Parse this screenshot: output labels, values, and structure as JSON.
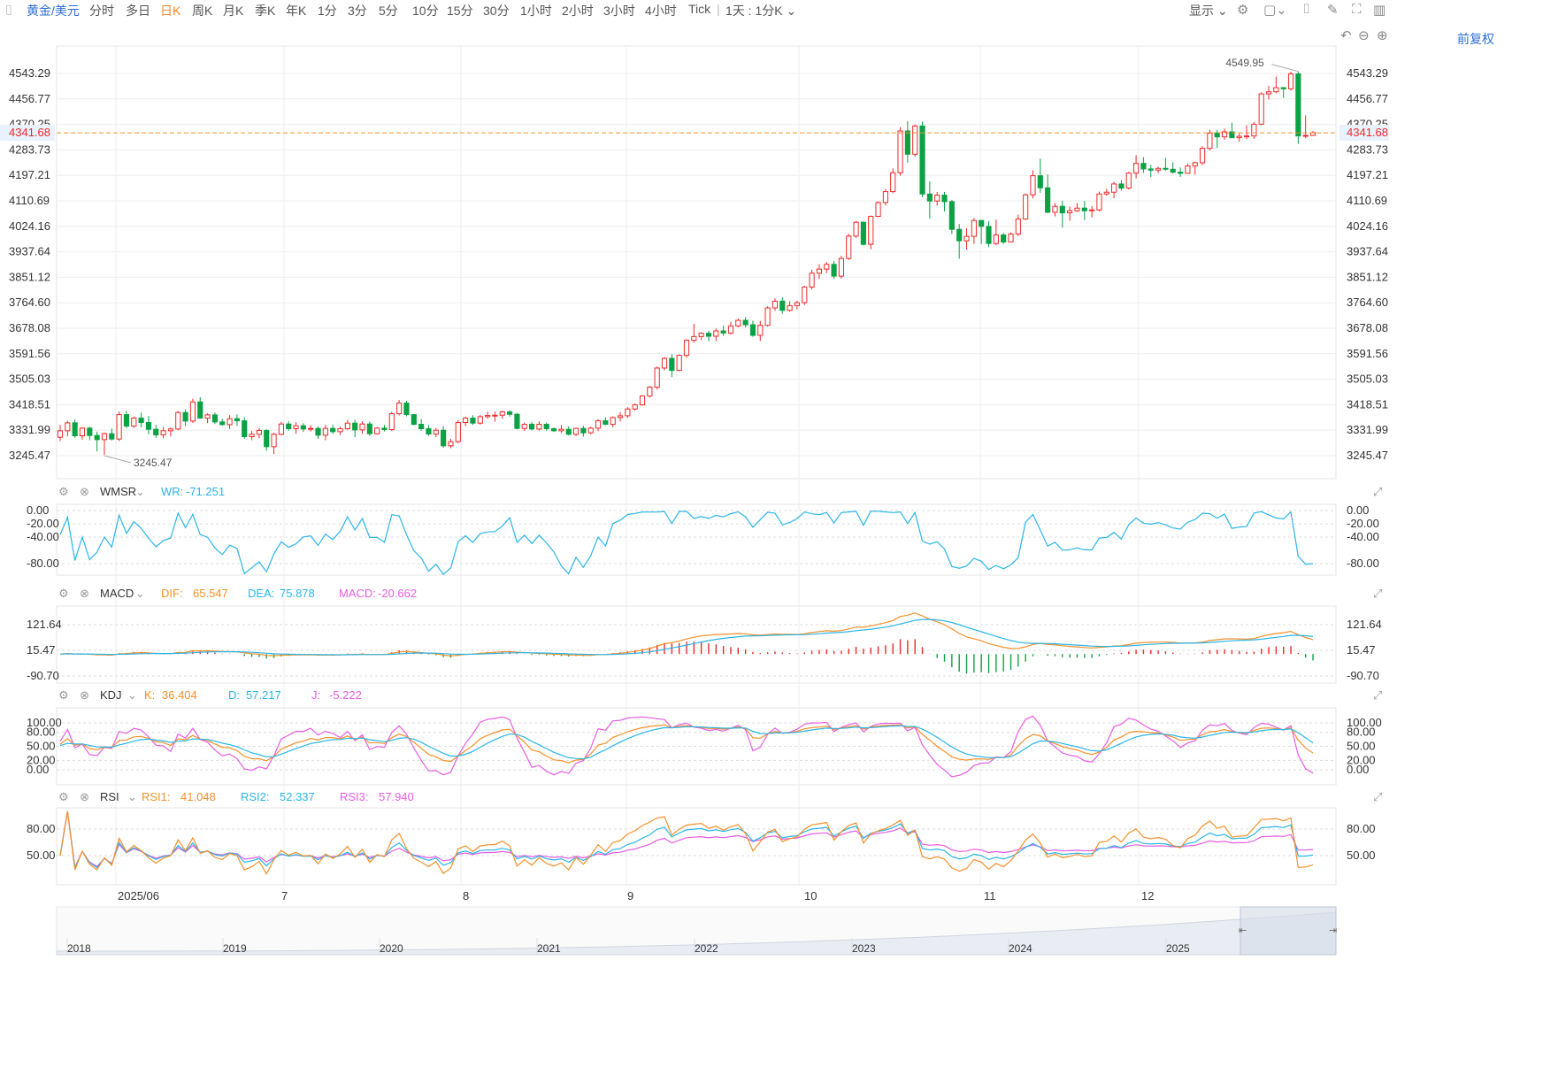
{
  "toolbar": {
    "symbol": "黄金/美元",
    "periods": [
      "分时",
      "多日",
      "日K",
      "周K",
      "月K",
      "季K",
      "年K",
      "1分",
      "3分",
      "5分",
      "10分",
      "15分",
      "30分",
      "1小时",
      "2小时",
      "3小时",
      "4小时",
      "Tick"
    ],
    "active_period": "日K",
    "interval_select": "1天 : 1分K",
    "display_label": "显示",
    "icons": [
      "settings-icon",
      "square-icon",
      "camera-icon",
      "pen-icon",
      "fullscreen-icon",
      "layout-icon"
    ],
    "adjust_label": "前复权",
    "adjust_icons": [
      "undo-icon",
      "zoom-out-icon",
      "zoom-in-icon"
    ]
  },
  "chart_data": {
    "type": "candlestick",
    "main": {
      "y_ticks": [
        4543.29,
        4456.77,
        4370.25,
        4283.73,
        4197.21,
        4110.69,
        4024.16,
        3937.64,
        3851.12,
        3764.6,
        3678.08,
        3591.56,
        3505.03,
        3418.51,
        3331.99,
        3245.47
      ],
      "last_price": "4341.68",
      "high_marker": "4549.95",
      "low_marker": "3245.47",
      "ohlc": [
        [
          3308,
          3350,
          3295,
          3330
        ],
        [
          3330,
          3364,
          3311,
          3357
        ],
        [
          3357,
          3368,
          3306,
          3313
        ],
        [
          3313,
          3342,
          3300,
          3339
        ],
        [
          3339,
          3344,
          3298,
          3314
        ],
        [
          3314,
          3327,
          3260,
          3300
        ],
        [
          3300,
          3324,
          3248,
          3320
        ],
        [
          3320,
          3338,
          3297,
          3302
        ],
        [
          3302,
          3395,
          3295,
          3385
        ],
        [
          3385,
          3398,
          3339,
          3346
        ],
        [
          3346,
          3378,
          3339,
          3373
        ],
        [
          3373,
          3392,
          3341,
          3358
        ],
        [
          3358,
          3380,
          3318,
          3335
        ],
        [
          3335,
          3350,
          3306,
          3316
        ],
        [
          3316,
          3343,
          3304,
          3330
        ],
        [
          3330,
          3342,
          3311,
          3336
        ],
        [
          3336,
          3397,
          3332,
          3392
        ],
        [
          3392,
          3403,
          3346,
          3363
        ],
        [
          3363,
          3439,
          3357,
          3428
        ],
        [
          3428,
          3444,
          3371,
          3373
        ],
        [
          3373,
          3389,
          3356,
          3384
        ],
        [
          3384,
          3392,
          3353,
          3360
        ],
        [
          3360,
          3371,
          3347,
          3351
        ],
        [
          3351,
          3383,
          3336,
          3371
        ],
        [
          3371,
          3386,
          3347,
          3364
        ],
        [
          3364,
          3376,
          3303,
          3310
        ],
        [
          3310,
          3329,
          3298,
          3318
        ],
        [
          3318,
          3340,
          3305,
          3331
        ],
        [
          3331,
          3336,
          3262,
          3276
        ],
        [
          3276,
          3323,
          3251,
          3318
        ],
        [
          3318,
          3360,
          3315,
          3353
        ],
        [
          3353,
          3362,
          3330,
          3337
        ],
        [
          3337,
          3359,
          3320,
          3347
        ],
        [
          3347,
          3356,
          3326,
          3336
        ],
        [
          3336,
          3349,
          3328,
          3338
        ],
        [
          3338,
          3345,
          3302,
          3315
        ],
        [
          3315,
          3350,
          3298,
          3338
        ],
        [
          3338,
          3351,
          3319,
          3327
        ],
        [
          3327,
          3344,
          3316,
          3337
        ],
        [
          3337,
          3367,
          3332,
          3356
        ],
        [
          3356,
          3367,
          3308,
          3333
        ],
        [
          3333,
          3362,
          3320,
          3353
        ],
        [
          3353,
          3361,
          3312,
          3320
        ],
        [
          3320,
          3343,
          3317,
          3339
        ],
        [
          3339,
          3350,
          3328,
          3334
        ],
        [
          3334,
          3394,
          3329,
          3388
        ],
        [
          3388,
          3435,
          3382,
          3424
        ],
        [
          3424,
          3432,
          3379,
          3385
        ],
        [
          3385,
          3387,
          3348,
          3352
        ],
        [
          3352,
          3370,
          3330,
          3337
        ],
        [
          3337,
          3349,
          3313,
          3319
        ],
        [
          3319,
          3340,
          3309,
          3332
        ],
        [
          3332,
          3346,
          3273,
          3279
        ],
        [
          3279,
          3303,
          3271,
          3293
        ],
        [
          3293,
          3367,
          3288,
          3358
        ],
        [
          3358,
          3378,
          3346,
          3373
        ],
        [
          3373,
          3383,
          3350,
          3356
        ],
        [
          3356,
          3384,
          3351,
          3378
        ],
        [
          3378,
          3395,
          3371,
          3382
        ],
        [
          3382,
          3395,
          3361,
          3383
        ],
        [
          3383,
          3398,
          3371,
          3394
        ],
        [
          3394,
          3400,
          3378,
          3386
        ],
        [
          3386,
          3391,
          3335,
          3338
        ],
        [
          3338,
          3358,
          3330,
          3352
        ],
        [
          3352,
          3359,
          3331,
          3336
        ],
        [
          3336,
          3362,
          3331,
          3352
        ],
        [
          3352,
          3358,
          3330,
          3337
        ],
        [
          3337,
          3341,
          3326,
          3330
        ],
        [
          3330,
          3350,
          3322,
          3335
        ],
        [
          3335,
          3345,
          3314,
          3318
        ],
        [
          3318,
          3340,
          3312,
          3338
        ],
        [
          3338,
          3347,
          3310,
          3323
        ],
        [
          3323,
          3344,
          3318,
          3339
        ],
        [
          3339,
          3369,
          3329,
          3364
        ],
        [
          3364,
          3376,
          3349,
          3352
        ],
        [
          3352,
          3379,
          3342,
          3375
        ],
        [
          3375,
          3393,
          3362,
          3381
        ],
        [
          3381,
          3410,
          3374,
          3404
        ],
        [
          3404,
          3423,
          3398,
          3418
        ],
        [
          3418,
          3451,
          3415,
          3448
        ],
        [
          3448,
          3482,
          3443,
          3478
        ],
        [
          3478,
          3548,
          3470,
          3543
        ],
        [
          3543,
          3580,
          3535,
          3576
        ],
        [
          3576,
          3590,
          3512,
          3535
        ],
        [
          3535,
          3590,
          3532,
          3586
        ],
        [
          3586,
          3641,
          3578,
          3637
        ],
        [
          3637,
          3693,
          3629,
          3650
        ],
        [
          3650,
          3665,
          3638,
          3661
        ],
        [
          3661,
          3670,
          3634,
          3651
        ],
        [
          3651,
          3677,
          3635,
          3669
        ],
        [
          3669,
          3687,
          3652,
          3662
        ],
        [
          3662,
          3700,
          3656,
          3686
        ],
        [
          3686,
          3711,
          3681,
          3705
        ],
        [
          3705,
          3716,
          3681,
          3690
        ],
        [
          3690,
          3704,
          3649,
          3654
        ],
        [
          3654,
          3703,
          3635,
          3688
        ],
        [
          3688,
          3753,
          3684,
          3747
        ],
        [
          3747,
          3780,
          3738,
          3770
        ],
        [
          3770,
          3783,
          3727,
          3739
        ],
        [
          3739,
          3770,
          3734,
          3755
        ],
        [
          3755,
          3772,
          3742,
          3765
        ],
        [
          3765,
          3822,
          3757,
          3818
        ],
        [
          3818,
          3877,
          3810,
          3865
        ],
        [
          3865,
          3895,
          3846,
          3879
        ],
        [
          3879,
          3903,
          3865,
          3895
        ],
        [
          3895,
          3906,
          3846,
          3855
        ],
        [
          3855,
          3924,
          3846,
          3915
        ],
        [
          3915,
          3999,
          3910,
          3991
        ],
        [
          3991,
          4043,
          3985,
          4038
        ],
        [
          4038,
          4041,
          3959,
          3963
        ],
        [
          3963,
          4061,
          3946,
          4058
        ],
        [
          4058,
          4109,
          4055,
          4105
        ],
        [
          4105,
          4151,
          4095,
          4142
        ],
        [
          4142,
          4221,
          4137,
          4206
        ],
        [
          4206,
          4361,
          4196,
          4348
        ],
        [
          4348,
          4381,
          4241,
          4269
        ],
        [
          4269,
          4370,
          4261,
          4365
        ],
        [
          4365,
          4380,
          4123,
          4134
        ],
        [
          4134,
          4177,
          4050,
          4110
        ],
        [
          4110,
          4141,
          4094,
          4130
        ],
        [
          4130,
          4141,
          4075,
          4108
        ],
        [
          4108,
          4114,
          3998,
          4014
        ],
        [
          4014,
          4032,
          3914,
          3975
        ],
        [
          3975,
          4018,
          3945,
          3990
        ],
        [
          3990,
          4053,
          3965,
          4044
        ],
        [
          4044,
          4046,
          3964,
          4024
        ],
        [
          4024,
          4042,
          3954,
          3966
        ],
        [
          3966,
          4047,
          3960,
          3995
        ],
        [
          3995,
          4002,
          3964,
          3971
        ],
        [
          3971,
          4004,
          3971,
          3998
        ],
        [
          3998,
          4064,
          3991,
          4049
        ],
        [
          4049,
          4136,
          4046,
          4131
        ],
        [
          4131,
          4214,
          4119,
          4196
        ],
        [
          4196,
          4255,
          4138,
          4155
        ],
        [
          4155,
          4200,
          4069,
          4072
        ],
        [
          4072,
          4103,
          4058,
          4092
        ],
        [
          4092,
          4111,
          4020,
          4070
        ],
        [
          4070,
          4091,
          4043,
          4077
        ],
        [
          4077,
          4103,
          4073,
          4086
        ],
        [
          4086,
          4110,
          4045,
          4077
        ],
        [
          4077,
          4093,
          4054,
          4080
        ],
        [
          4080,
          4142,
          4075,
          4134
        ],
        [
          4134,
          4151,
          4128,
          4140
        ],
        [
          4140,
          4175,
          4120,
          4168
        ],
        [
          4168,
          4181,
          4146,
          4154
        ],
        [
          4154,
          4209,
          4149,
          4205
        ],
        [
          4205,
          4266,
          4187,
          4238
        ],
        [
          4238,
          4259,
          4206,
          4219
        ],
        [
          4219,
          4233,
          4191,
          4215
        ],
        [
          4215,
          4227,
          4204,
          4221
        ],
        [
          4221,
          4256,
          4213,
          4218
        ],
        [
          4218,
          4242,
          4203,
          4208
        ],
        [
          4208,
          4224,
          4192,
          4204
        ],
        [
          4204,
          4237,
          4203,
          4229
        ],
        [
          4229,
          4244,
          4200,
          4240
        ],
        [
          4240,
          4296,
          4232,
          4289
        ],
        [
          4289,
          4352,
          4282,
          4341
        ],
        [
          4341,
          4352,
          4290,
          4328
        ],
        [
          4328,
          4356,
          4318,
          4345
        ],
        [
          4345,
          4376,
          4331,
          4325
        ],
        [
          4325,
          4342,
          4312,
          4330
        ],
        [
          4330,
          4367,
          4320,
          4331
        ],
        [
          4331,
          4378,
          4321,
          4371
        ],
        [
          4371,
          4479,
          4367,
          4474
        ],
        [
          4474,
          4501,
          4455,
          4481
        ],
        [
          4481,
          4533,
          4476,
          4495
        ],
        [
          4495,
          4497,
          4460,
          4491
        ],
        [
          4491,
          4549,
          4485,
          4542
        ],
        [
          4542,
          4550,
          4304,
          4331
        ],
        [
          4331,
          4401,
          4323,
          4333
        ],
        [
          4333,
          4348,
          4331,
          4342
        ]
      ]
    },
    "x_labels": [
      "2025/06",
      "7",
      "8",
      "9",
      "10",
      "11",
      "12"
    ],
    "nav_labels": [
      "2018",
      "2019",
      "2020",
      "2021",
      "2022",
      "2023",
      "2024",
      "2025"
    ],
    "indicators": [
      {
        "name": "WMSR",
        "series": [
          {
            "name": "WR",
            "value": "-71.251",
            "color": "#2ab5e8"
          }
        ],
        "y_ticks": [
          "0.00",
          "-20.00",
          "-40.00",
          "-80.00"
        ]
      },
      {
        "name": "MACD",
        "series": [
          {
            "name": "DIF",
            "value": "65.547",
            "color": "#f6902a"
          },
          {
            "name": "DEA",
            "value": "75.878",
            "color": "#2ab5e8"
          },
          {
            "name": "MACD",
            "value": "-20.662",
            "color": "#e85ce2"
          }
        ],
        "y_ticks": [
          "121.64",
          "15.47",
          "-90.70"
        ]
      },
      {
        "name": "KDJ",
        "series": [
          {
            "name": "K",
            "value": "36.404",
            "color": "#f6902a"
          },
          {
            "name": "D",
            "value": "57.217",
            "color": "#2ab5e8"
          },
          {
            "name": "J",
            "value": "-5.222",
            "color": "#e85ce2"
          }
        ],
        "y_ticks": [
          "100.00",
          "80.00",
          "50.00",
          "20.00",
          "0.00"
        ]
      },
      {
        "name": "RSI",
        "series": [
          {
            "name": "RSI1",
            "value": "41.048",
            "color": "#f6902a"
          },
          {
            "name": "RSI2",
            "value": "52.337",
            "color": "#2ab5e8"
          },
          {
            "name": "RSI3",
            "value": "57.940",
            "color": "#e85ce2"
          }
        ],
        "y_ticks": [
          "80.00",
          "50.00"
        ]
      }
    ],
    "colors": {
      "up": "#ee2a2a",
      "down": "#0aa244",
      "last": "#f6902a",
      "grid": "#eeeeee",
      "axis": "#333333"
    }
  }
}
